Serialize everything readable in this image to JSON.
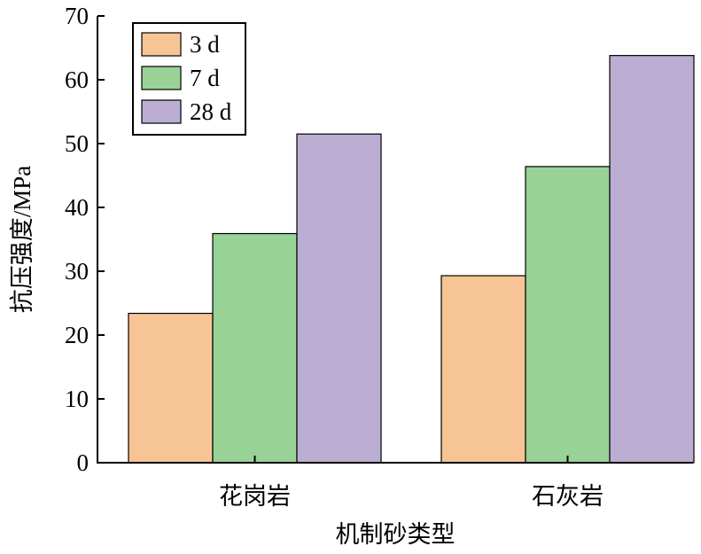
{
  "chart_data": {
    "type": "bar",
    "title": "",
    "xlabel": "机制砂类型",
    "ylabel": "抗压强度/MPa",
    "categories": [
      "花岗岩",
      "石灰岩"
    ],
    "series": [
      {
        "name": "3 d",
        "values": [
          23.4,
          29.3
        ],
        "color": "#f7c496"
      },
      {
        "name": "7 d",
        "values": [
          35.9,
          46.4
        ],
        "color": "#98d297"
      },
      {
        "name": "28 d",
        "values": [
          51.5,
          63.8
        ],
        "color": "#bbaed2"
      }
    ],
    "ylim": [
      0,
      70
    ],
    "yticks": [
      0,
      10,
      20,
      30,
      40,
      50,
      60,
      70
    ],
    "grid": false,
    "legend_position": "top-left"
  }
}
